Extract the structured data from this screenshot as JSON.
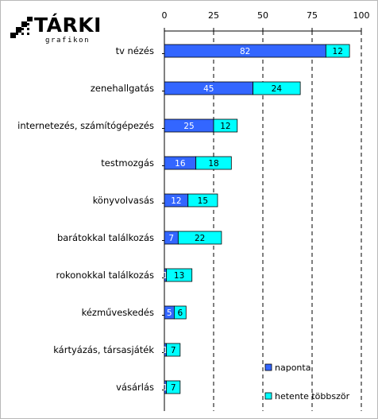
{
  "logo": {
    "text": "TÁRKI",
    "subtitle": "grafikon"
  },
  "chart_data": {
    "type": "bar",
    "orientation": "horizontal",
    "stacked": true,
    "categories": [
      "tv nézés",
      "zenehallgatás",
      "internetezés, számítógépezés",
      "testmozgás",
      "könyvolvasás",
      "barátokkal találkozás",
      "rokonokkal találkozás",
      "kézműveskedés",
      "kártyázás, társasjáték",
      "vásárlás"
    ],
    "series": [
      {
        "name": "naponta",
        "color": "#3366ff",
        "label_color": "#ffffff",
        "values": [
          82,
          45,
          25,
          16,
          12,
          7,
          1,
          5,
          1,
          1
        ]
      },
      {
        "name": "hetente többször",
        "color": "#00ffff",
        "label_color": "#000000",
        "values": [
          12,
          24,
          12,
          18,
          15,
          22,
          13,
          6,
          7,
          7
        ]
      }
    ],
    "xlim": [
      0,
      100
    ],
    "xticks": [
      0,
      25,
      50,
      75,
      100
    ],
    "grid": "dashed vertical",
    "axis_position": "top",
    "legend": "bottom-right",
    "xlabel": "",
    "ylabel": "",
    "title": ""
  }
}
